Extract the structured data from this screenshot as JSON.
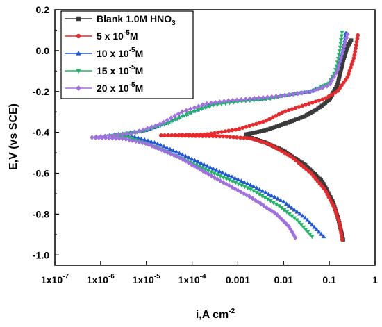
{
  "chart_data": {
    "type": "line",
    "xlabel": "i,A cm",
    "xlabel_sup": "-2",
    "ylabel": "E,V (vs SCE)",
    "xscale": "log",
    "xlim": [
      1e-07,
      1
    ],
    "ylim": [
      -1.05,
      0.2
    ],
    "x_ticks": [
      1e-07,
      1e-06,
      1e-05,
      0.0001,
      0.001,
      0.01,
      0.1,
      1
    ],
    "x_tick_labels": [
      "1x10",
      "1x10",
      "1x10",
      "1x10",
      "0.001",
      "0.01",
      "0.1",
      "1"
    ],
    "x_tick_sups": [
      "-7",
      "-6",
      "-5",
      "-4",
      "",
      "",
      "",
      ""
    ],
    "y_ticks": [
      0.2,
      0.0,
      -0.2,
      -0.4,
      -0.6,
      -0.8,
      -1.0
    ],
    "y_tick_labels": [
      "0.2",
      "0.0",
      "-0.2",
      "-0.4",
      "-0.6",
      "-0.8",
      "-1.0"
    ],
    "legend": {
      "placement": "top-left"
    },
    "series": [
      {
        "name": "Blank 1.0M HNO",
        "name_sub": "3",
        "color": "#3a3a3a",
        "marker": "square",
        "cathodic": [
          [
            0.0015,
            -0.41
          ],
          [
            0.002,
            -0.428
          ],
          [
            0.004,
            -0.45
          ],
          [
            0.01,
            -0.49
          ],
          [
            0.03,
            -0.56
          ],
          [
            0.07,
            -0.64
          ],
          [
            0.12,
            -0.74
          ],
          [
            0.16,
            -0.83
          ],
          [
            0.18,
            -0.88
          ],
          [
            0.2,
            -0.925
          ]
        ],
        "anodic": [
          [
            0.0015,
            -0.41
          ],
          [
            0.004,
            -0.39
          ],
          [
            0.01,
            -0.36
          ],
          [
            0.03,
            -0.32
          ],
          [
            0.06,
            -0.28
          ],
          [
            0.1,
            -0.24
          ],
          [
            0.15,
            -0.17
          ],
          [
            0.2,
            -0.05
          ],
          [
            0.25,
            0.02
          ],
          [
            0.3,
            0.05
          ]
        ]
      },
      {
        "name": "5 x 10",
        "name_sup": "-5",
        "name_suffix": "M",
        "color": "#e8282a",
        "marker": "circle",
        "cathodic": [
          [
            2.1e-05,
            -0.415
          ],
          [
            0.0005,
            -0.42
          ],
          [
            0.002,
            -0.43
          ],
          [
            0.005,
            -0.46
          ],
          [
            0.015,
            -0.52
          ],
          [
            0.04,
            -0.6
          ],
          [
            0.08,
            -0.68
          ],
          [
            0.13,
            -0.77
          ],
          [
            0.17,
            -0.85
          ],
          [
            0.19,
            -0.925
          ]
        ],
        "anodic": [
          [
            2.1e-05,
            -0.415
          ],
          [
            0.0002,
            -0.41
          ],
          [
            0.001,
            -0.385
          ],
          [
            0.004,
            -0.345
          ],
          [
            0.01,
            -0.3
          ],
          [
            0.03,
            -0.265
          ],
          [
            0.08,
            -0.235
          ],
          [
            0.15,
            -0.2
          ],
          [
            0.25,
            -0.13
          ],
          [
            0.35,
            -0.03
          ],
          [
            0.42,
            0.075
          ]
        ]
      },
      {
        "name": "10 x 10",
        "name_sup": "-5",
        "name_suffix": "M",
        "color": "#2156d8",
        "marker": "triangle-up",
        "cathodic": [
          [
            2e-06,
            -0.412
          ],
          [
            5e-06,
            -0.42
          ],
          [
            1.5e-05,
            -0.45
          ],
          [
            5e-05,
            -0.5
          ],
          [
            0.0003,
            -0.58
          ],
          [
            0.002,
            -0.66
          ],
          [
            0.01,
            -0.74
          ],
          [
            0.03,
            -0.82
          ],
          [
            0.075,
            -0.91
          ]
        ],
        "anodic": [
          [
            2e-06,
            -0.412
          ],
          [
            1e-05,
            -0.39
          ],
          [
            3e-05,
            -0.35
          ],
          [
            0.0001,
            -0.3
          ],
          [
            0.0003,
            -0.26
          ],
          [
            0.001,
            -0.245
          ],
          [
            0.004,
            -0.235
          ],
          [
            0.01,
            -0.22
          ],
          [
            0.04,
            -0.2
          ],
          [
            0.1,
            -0.16
          ],
          [
            0.15,
            -0.09
          ],
          [
            0.2,
            0.0
          ],
          [
            0.23,
            0.085
          ]
        ]
      },
      {
        "name": "15 x 10",
        "name_sup": "-5",
        "name_suffix": "M",
        "color": "#21b565",
        "marker": "triangle-down",
        "cathodic": [
          [
            1.5e-06,
            -0.418
          ],
          [
            4e-06,
            -0.425
          ],
          [
            1.2e-05,
            -0.46
          ],
          [
            5e-05,
            -0.52
          ],
          [
            0.0003,
            -0.6
          ],
          [
            0.002,
            -0.68
          ],
          [
            0.008,
            -0.76
          ],
          [
            0.02,
            -0.83
          ],
          [
            0.042,
            -0.91
          ]
        ],
        "anodic": [
          [
            1.5e-06,
            -0.418
          ],
          [
            8e-06,
            -0.395
          ],
          [
            3e-05,
            -0.355
          ],
          [
            0.0001,
            -0.3
          ],
          [
            0.0003,
            -0.265
          ],
          [
            0.001,
            -0.25
          ],
          [
            0.005,
            -0.235
          ],
          [
            0.01,
            -0.22
          ],
          [
            0.04,
            -0.2
          ],
          [
            0.1,
            -0.16
          ],
          [
            0.14,
            -0.09
          ],
          [
            0.17,
            0.0
          ],
          [
            0.19,
            0.09
          ]
        ]
      },
      {
        "name": "20 x 10",
        "name_sup": "-5",
        "name_suffix": "M",
        "color": "#a070e0",
        "marker": "diamond",
        "cathodic": [
          [
            6.5e-07,
            -0.425
          ],
          [
            3e-06,
            -0.43
          ],
          [
            1e-05,
            -0.455
          ],
          [
            5e-05,
            -0.52
          ],
          [
            0.0003,
            -0.62
          ],
          [
            0.002,
            -0.72
          ],
          [
            0.007,
            -0.8
          ],
          [
            0.013,
            -0.86
          ],
          [
            0.018,
            -0.915
          ]
        ],
        "anodic": [
          [
            6.5e-07,
            -0.425
          ],
          [
            5e-06,
            -0.405
          ],
          [
            2e-05,
            -0.36
          ],
          [
            6e-05,
            -0.3
          ],
          [
            0.0002,
            -0.26
          ],
          [
            0.0006,
            -0.245
          ],
          [
            0.002,
            -0.235
          ],
          [
            0.01,
            -0.22
          ],
          [
            0.04,
            -0.2
          ],
          [
            0.1,
            -0.17
          ],
          [
            0.15,
            -0.1
          ],
          [
            0.2,
            0.0
          ],
          [
            0.25,
            0.08
          ]
        ]
      }
    ]
  }
}
